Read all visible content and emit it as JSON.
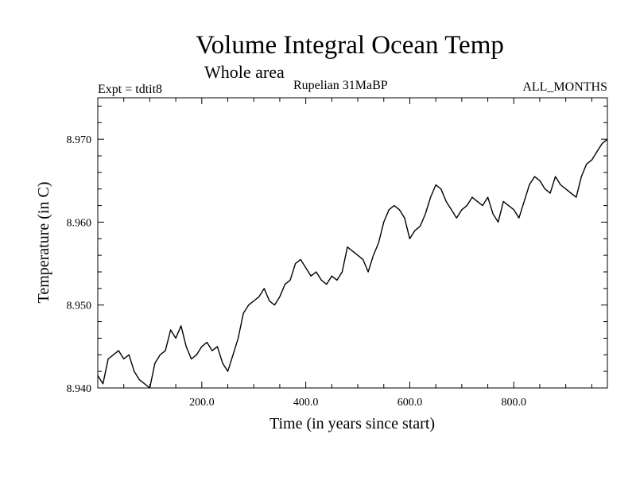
{
  "chart_data": {
    "type": "line",
    "title": "Volume Integral Ocean Temp",
    "subtitle": "Whole area",
    "experiment_label": "Expt = tdtit8",
    "period_label": "Rupelian  31MaBP",
    "months_label": "ALL_MONTHS",
    "xlabel": "Time (in years since start)",
    "ylabel": "Temperature (in C)",
    "xlim": [
      0,
      980
    ],
    "ylim": [
      8.94,
      8.975
    ],
    "x_ticks": [
      200,
      400,
      600,
      800
    ],
    "x_tick_labels": [
      "200.0",
      "400.0",
      "600.0",
      "800.0"
    ],
    "y_ticks": [
      8.94,
      8.95,
      8.96,
      8.97
    ],
    "y_tick_labels": [
      "8.940",
      "8.950",
      "8.960",
      "8.970"
    ],
    "grid": false,
    "series": [
      {
        "name": "Volume integral ocean temperature",
        "color": "#000000",
        "x": [
          0,
          10,
          20,
          30,
          40,
          50,
          60,
          70,
          80,
          90,
          100,
          110,
          120,
          130,
          140,
          150,
          160,
          170,
          180,
          190,
          200,
          210,
          220,
          230,
          240,
          250,
          260,
          270,
          280,
          290,
          300,
          310,
          320,
          330,
          340,
          350,
          360,
          370,
          380,
          390,
          400,
          410,
          420,
          430,
          440,
          450,
          460,
          470,
          480,
          490,
          500,
          510,
          520,
          530,
          540,
          550,
          560,
          570,
          580,
          590,
          600,
          610,
          620,
          630,
          640,
          650,
          660,
          670,
          680,
          690,
          700,
          710,
          720,
          730,
          740,
          750,
          760,
          770,
          780,
          790,
          800,
          810,
          820,
          830,
          840,
          850,
          860,
          870,
          880,
          890,
          900,
          910,
          920,
          930,
          940,
          950,
          960,
          970,
          980
        ],
        "values": [
          8.9415,
          8.9405,
          8.9435,
          8.944,
          8.9445,
          8.9435,
          8.944,
          8.942,
          8.941,
          8.9405,
          8.94,
          8.943,
          8.944,
          8.9445,
          8.947,
          8.946,
          8.9475,
          8.945,
          8.9435,
          8.944,
          8.945,
          8.9455,
          8.9445,
          8.945,
          8.943,
          8.942,
          8.944,
          8.946,
          8.949,
          8.95,
          8.9505,
          8.951,
          8.952,
          8.9505,
          8.95,
          8.951,
          8.9525,
          8.953,
          8.955,
          8.9555,
          8.9545,
          8.9535,
          8.954,
          8.953,
          8.9525,
          8.9535,
          8.953,
          8.954,
          8.957,
          8.9565,
          8.956,
          8.9555,
          8.954,
          8.956,
          8.9575,
          8.96,
          8.9615,
          8.962,
          8.9615,
          8.9605,
          8.958,
          8.959,
          8.9595,
          8.961,
          8.963,
          8.9645,
          8.964,
          8.9625,
          8.9615,
          8.9605,
          8.9615,
          8.962,
          8.963,
          8.9625,
          8.962,
          8.963,
          8.961,
          8.96,
          8.9625,
          8.962,
          8.9615,
          8.9605,
          8.9625,
          8.9645,
          8.9655,
          8.965,
          8.964,
          8.9635,
          8.9655,
          8.9645,
          8.964,
          8.9635,
          8.963,
          8.9655,
          8.967,
          8.9675,
          8.9685,
          8.9695,
          8.97
        ]
      }
    ]
  }
}
